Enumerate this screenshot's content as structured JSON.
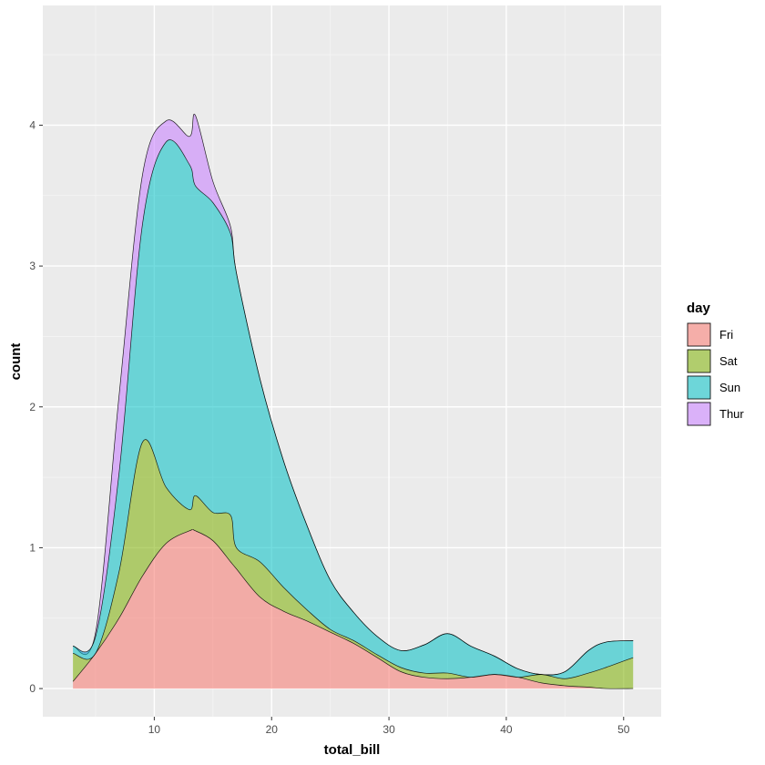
{
  "chart_data": {
    "type": "area",
    "subtype": "stacked-density-count",
    "xlabel": "total_bill",
    "ylabel": "count",
    "xlim": [
      0.5,
      53.2
    ],
    "ylim": [
      -0.2,
      4.85
    ],
    "x_ticks": [
      10,
      20,
      30,
      40,
      50
    ],
    "y_ticks": [
      0,
      1,
      2,
      3,
      4
    ],
    "grid": true,
    "legend": {
      "title": "day",
      "position": "right"
    },
    "x": [
      3.07,
      5,
      7,
      9,
      11,
      13,
      13.5,
      15,
      16.5,
      17,
      19,
      21,
      23,
      25,
      27,
      29,
      31,
      33,
      35,
      37,
      39,
      41,
      43,
      45,
      47,
      48.5,
      50.81
    ],
    "series": [
      {
        "name": "Fri",
        "color": "#F8766D",
        "values": [
          0.05,
          0.25,
          0.5,
          0.8,
          1.03,
          1.12,
          1.12,
          1.05,
          0.9,
          0.85,
          0.65,
          0.55,
          0.48,
          0.4,
          0.32,
          0.22,
          0.12,
          0.08,
          0.07,
          0.08,
          0.1,
          0.08,
          0.04,
          0.02,
          0.01,
          0.0,
          0.0
        ]
      },
      {
        "name": "Sat",
        "color": "#7CAE00",
        "values": [
          0.2,
          0.0,
          0.33,
          0.95,
          0.4,
          0.15,
          0.25,
          0.2,
          0.33,
          0.15,
          0.25,
          0.17,
          0.08,
          0.02,
          0.02,
          0.02,
          0.03,
          0.03,
          0.04,
          0.0,
          0.0,
          0.0,
          0.06,
          0.05,
          0.1,
          0.15,
          0.22
        ]
      },
      {
        "name": "Sun",
        "color": "#00BFC4",
        "values": [
          0.05,
          0.12,
          0.7,
          1.55,
          2.45,
          2.45,
          2.2,
          2.2,
          2.0,
          1.95,
          1.3,
          0.9,
          0.6,
          0.35,
          0.2,
          0.13,
          0.12,
          0.2,
          0.28,
          0.22,
          0.13,
          0.06,
          0.0,
          0.05,
          0.16,
          0.18,
          0.12
        ]
      },
      {
        "name": "Thur",
        "color": "#C77CFF",
        "values": [
          0.0,
          0.03,
          0.55,
          0.35,
          0.15,
          0.2,
          0.5,
          0.15,
          0.05,
          0.0,
          0.0,
          0.0,
          0.0,
          0.0,
          0.0,
          0.0,
          0.0,
          0.0,
          0.0,
          0.0,
          0.0,
          0.0,
          0.0,
          0.0,
          0.0,
          0.0,
          0.0
        ]
      }
    ]
  }
}
